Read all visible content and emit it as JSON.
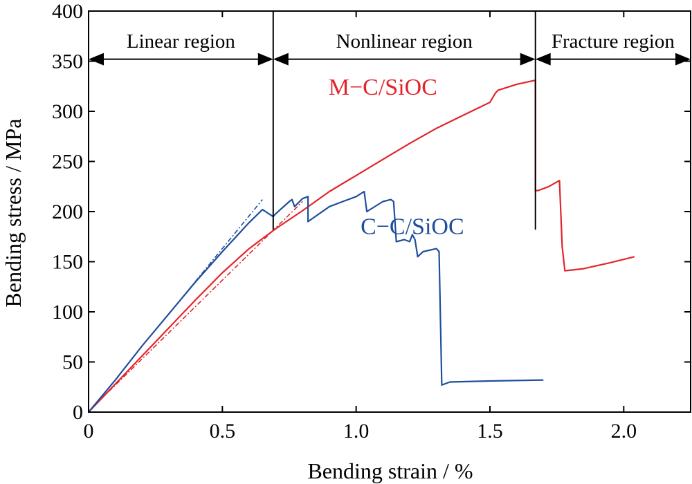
{
  "chart_data": {
    "type": "line",
    "title": "",
    "xlabel": "Bending strain / %",
    "ylabel": "Bending stress / MPa",
    "xlim": [
      0,
      2.25
    ],
    "ylim": [
      0,
      400
    ],
    "xticks": [
      0,
      0.5,
      1.0,
      1.5,
      2.0
    ],
    "xtick_labels": [
      "0",
      "0.5",
      "1.0",
      "1.5",
      "2.0"
    ],
    "yticks": [
      0,
      50,
      100,
      150,
      200,
      250,
      300,
      350,
      400
    ],
    "ytick_labels": [
      "0",
      "50",
      "100",
      "150",
      "200",
      "250",
      "300",
      "350",
      "400"
    ],
    "grid": false,
    "colors": {
      "m": "#e3242b",
      "c": "#1f4e9c",
      "axis": "#000000"
    },
    "regions": [
      {
        "label": "Linear region",
        "x_start": 0,
        "x_end": 0.69
      },
      {
        "label": "Nonlinear region",
        "x_start": 0.69,
        "x_end": 1.67
      },
      {
        "label": "Fracture region",
        "x_start": 1.67,
        "x_end": 2.25
      }
    ],
    "region_boundaries": [
      0.69,
      1.67
    ],
    "series": [
      {
        "name": "M−C/SiOC",
        "color": "#e3242b",
        "x": [
          0,
          0.1,
          0.2,
          0.3,
          0.4,
          0.5,
          0.6,
          0.7,
          0.8,
          0.9,
          1.0,
          1.1,
          1.2,
          1.3,
          1.4,
          1.5,
          1.52,
          1.53,
          1.6,
          1.67,
          1.67,
          1.68,
          1.72,
          1.76,
          1.77,
          1.78,
          1.85,
          1.95,
          2.04
        ],
        "y": [
          0,
          28,
          56,
          84,
          112,
          139,
          163,
          183,
          201,
          220,
          236,
          252,
          268,
          283,
          296,
          309,
          318,
          321,
          327,
          331,
          221,
          221,
          225,
          231,
          165,
          141,
          143,
          149,
          155
        ]
      },
      {
        "name": "M−C/SiOC linear fit",
        "color": "#e3242b",
        "dashed": true,
        "x": [
          0.02,
          0.8
        ],
        "y": [
          6,
          210
        ]
      },
      {
        "name": "C−C/SiOC",
        "color": "#1f4e9c",
        "x": [
          0,
          0.1,
          0.2,
          0.3,
          0.4,
          0.5,
          0.6,
          0.65,
          0.69,
          0.7,
          0.75,
          0.76,
          0.77,
          0.8,
          0.82,
          0.82,
          0.9,
          0.95,
          1.0,
          1.03,
          1.04,
          1.1,
          1.13,
          1.14,
          1.15,
          1.18,
          1.2,
          1.21,
          1.22,
          1.23,
          1.25,
          1.3,
          1.31,
          1.32,
          1.35,
          1.5,
          1.7
        ],
        "y": [
          0,
          32,
          66,
          98,
          130,
          160,
          189,
          202,
          195,
          198,
          210,
          212,
          205,
          213,
          215,
          190,
          205,
          210,
          215,
          220,
          200,
          210,
          212,
          210,
          170,
          172,
          170,
          177,
          172,
          155,
          160,
          163,
          160,
          27,
          30,
          31,
          32
        ]
      },
      {
        "name": "C−C/SiOC linear fit",
        "color": "#1f4e9c",
        "dashed": true,
        "x": [
          0.3,
          0.65
        ],
        "y": [
          98,
          212
        ]
      }
    ],
    "annotations": [
      {
        "text": "M−C/SiOC",
        "x": 1.1,
        "y": 325,
        "color": "#e3242b"
      },
      {
        "text": "C−C/SiOC",
        "x": 1.21,
        "y": 186,
        "color": "#1f4e9c"
      }
    ]
  }
}
